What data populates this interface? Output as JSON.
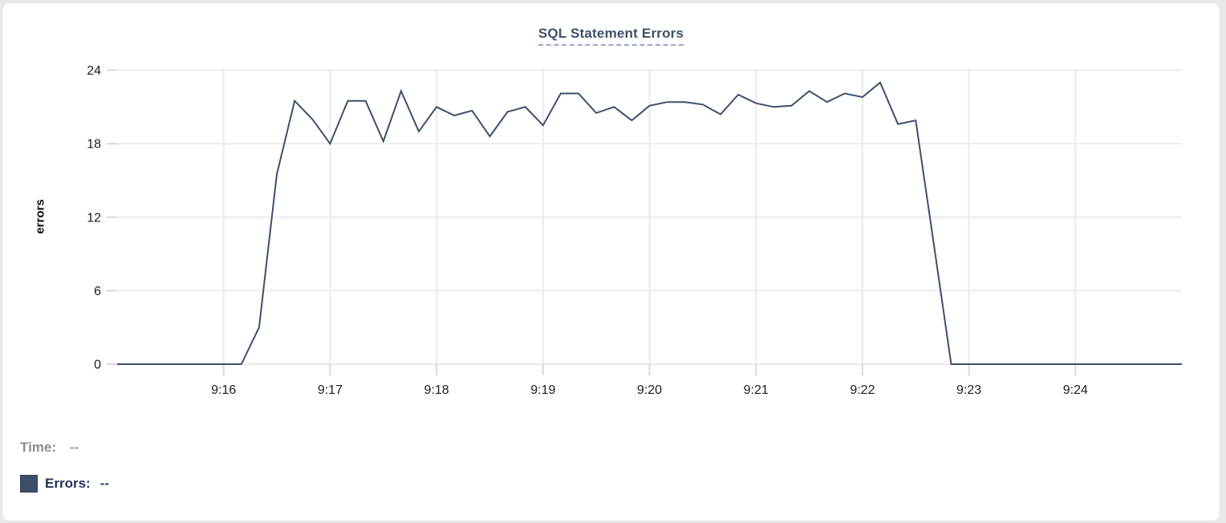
{
  "chart_data": {
    "type": "line",
    "title": "SQL Statement Errors",
    "ylabel": "errors",
    "xlabel": "",
    "ylim": [
      0,
      24
    ],
    "yticks": [
      0,
      6,
      12,
      18,
      24
    ],
    "x_start": "9:15:00",
    "x_end": "9:25:00",
    "x_total_seconds": 600,
    "interval_seconds": 10,
    "grid": true,
    "legend_position": "bottom-left",
    "xticks": [
      {
        "label": "9:16",
        "t": 60
      },
      {
        "label": "9:17",
        "t": 120
      },
      {
        "label": "9:18",
        "t": 180
      },
      {
        "label": "9:19",
        "t": 240
      },
      {
        "label": "9:20",
        "t": 300
      },
      {
        "label": "9:21",
        "t": 360
      },
      {
        "label": "9:22",
        "t": 420
      },
      {
        "label": "9:23",
        "t": 480
      },
      {
        "label": "9:24",
        "t": 540
      }
    ],
    "series": [
      {
        "name": "Errors",
        "color": "#3e4f6e",
        "values": [
          0,
          0,
          0,
          0,
          0,
          0,
          0,
          0,
          3,
          15.5,
          21.5,
          20,
          18,
          21.5,
          21.5,
          18.2,
          22.3,
          19,
          21,
          20.3,
          20.7,
          18.6,
          20.6,
          21,
          19.5,
          22.1,
          22.1,
          20.5,
          21,
          19.9,
          21.1,
          21.4,
          21.4,
          21.2,
          20.4,
          22,
          21.3,
          21,
          21.1,
          22.3,
          21.4,
          22.1,
          21.8,
          23,
          19.6,
          19.9,
          10,
          0,
          0,
          0,
          0,
          0,
          0,
          0,
          0,
          0,
          0,
          0,
          0,
          0,
          0
        ]
      }
    ]
  },
  "tooltip_readout": {
    "time_label": "Time:",
    "time_value": "--",
    "errors_label": "Errors:",
    "errors_value": "--",
    "swatch_color": "#3d4e6b"
  },
  "colors": {
    "line": "#3e4f6e",
    "title": "#3d5069",
    "title_underline": "#96a7c4",
    "gridline": "#ebebee",
    "tick": "#d9d9dd",
    "axis_text": "#1d1d1f"
  }
}
